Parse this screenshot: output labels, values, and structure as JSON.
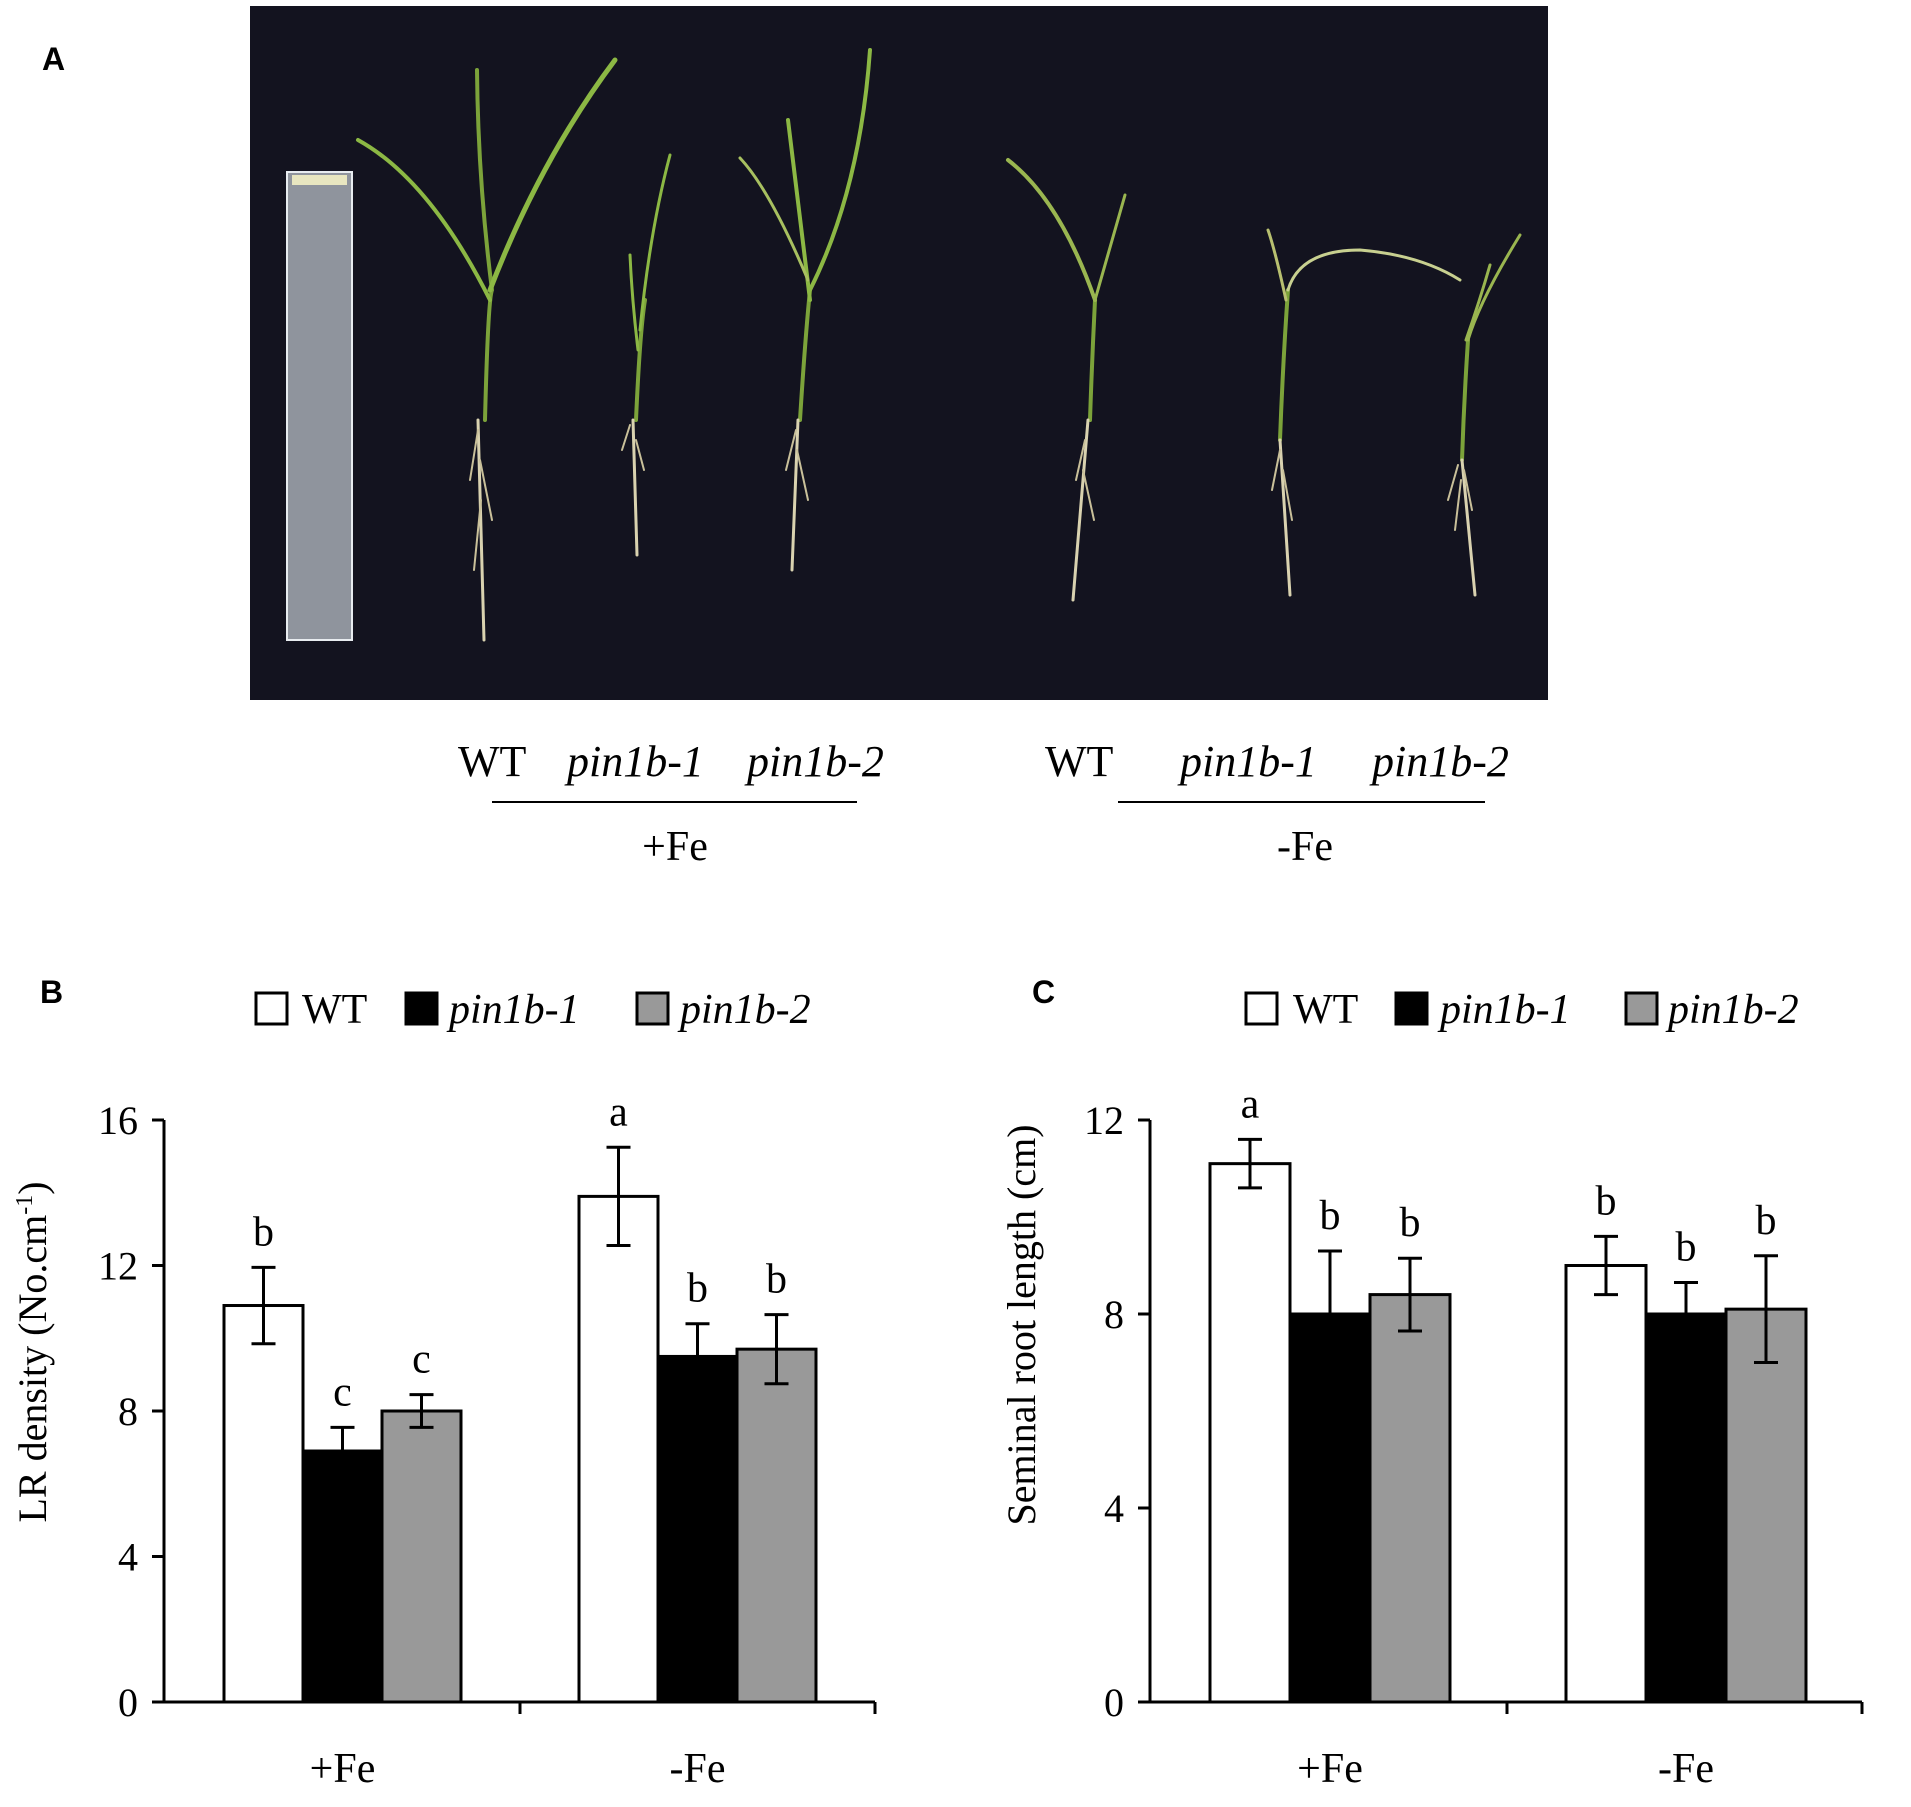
{
  "panel_a": {
    "letter": "A",
    "left_group": {
      "labels": [
        "WT",
        "pin1b-1",
        "pin1b-2"
      ],
      "condition": "+Fe"
    },
    "right_group": {
      "labels": [
        "WT",
        "pin1b-1",
        "pin1b-2"
      ],
      "condition": "-Fe"
    }
  },
  "legend": {
    "items": [
      {
        "name": "WT",
        "color": "#ffffff",
        "italic": false
      },
      {
        "name": "pin1b-1",
        "color": "#000000",
        "italic": true
      },
      {
        "name": "pin1b-2",
        "color": "#999999",
        "italic": true
      }
    ]
  },
  "chart_data": [
    {
      "panel": "B",
      "type": "bar",
      "ylabel": "LR density (No.cm",
      "ylabel_sup": "-1",
      "ylabel_tail": ")",
      "ylim": [
        0,
        16
      ],
      "yticks": [
        "0",
        "4",
        "8",
        "12",
        "16"
      ],
      "categories": [
        "+Fe",
        "-Fe"
      ],
      "series": [
        {
          "name": "WT",
          "color": "#ffffff",
          "values": [
            10.9,
            13.9
          ],
          "errors": [
            1.05,
            1.35
          ],
          "letters": [
            "b",
            "a"
          ]
        },
        {
          "name": "pin1b-1",
          "color": "#000000",
          "values": [
            6.9,
            9.5
          ],
          "errors": [
            0.65,
            0.9
          ],
          "letters": [
            "c",
            "b"
          ]
        },
        {
          "name": "pin1b-2",
          "color": "#999999",
          "values": [
            8.0,
            9.7
          ],
          "errors": [
            0.45,
            0.95
          ],
          "letters": [
            "c",
            "b"
          ]
        }
      ]
    },
    {
      "panel": "C",
      "type": "bar",
      "ylabel": "Seminal root length (cm)",
      "ylim": [
        0,
        12
      ],
      "yticks": [
        "0",
        "4",
        "8",
        "12"
      ],
      "categories": [
        "+Fe",
        "-Fe"
      ],
      "series": [
        {
          "name": "WT",
          "color": "#ffffff",
          "values": [
            11.1,
            9.0
          ],
          "errors": [
            0.5,
            0.6
          ],
          "letters": [
            "a",
            "b"
          ]
        },
        {
          "name": "pin1b-1",
          "color": "#000000",
          "values": [
            8.0,
            8.0
          ],
          "errors": [
            1.3,
            0.65
          ],
          "letters": [
            "b",
            "b"
          ]
        },
        {
          "name": "pin1b-2",
          "color": "#999999",
          "values": [
            8.4,
            8.1
          ],
          "errors": [
            0.75,
            1.1
          ],
          "letters": [
            "b",
            "b"
          ]
        }
      ]
    }
  ]
}
